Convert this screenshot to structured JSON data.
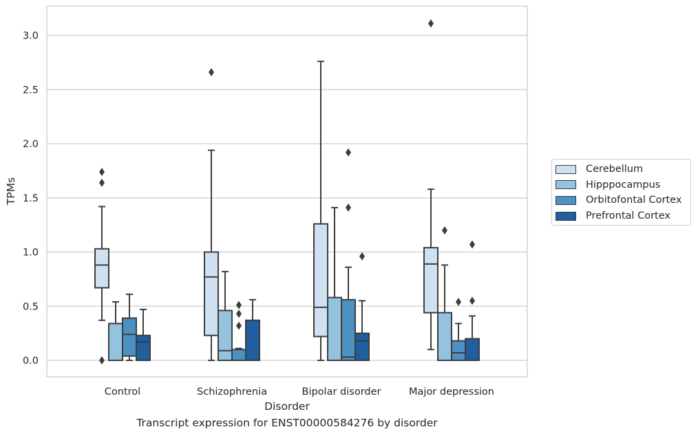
{
  "caption": "Transcript expression for ENST00000584276 by disorder",
  "chart_data": {
    "type": "box",
    "title": "",
    "xlabel": "Disorder",
    "ylabel": "TPMs",
    "ylim": [
      -0.15,
      3.27
    ],
    "yticks": [
      "0.0",
      "0.5",
      "1.0",
      "1.5",
      "2.0",
      "2.5",
      "3.0"
    ],
    "grid": "horizontal",
    "legend_position": "right",
    "categories": [
      "Control",
      "Schizophrenia",
      "Bipolar disorder",
      "Major depression"
    ],
    "series": [
      {
        "name": "Cerebellum",
        "color": "#cfe0f1",
        "boxes": [
          {
            "whislo": 0.37,
            "q1": 0.67,
            "med": 0.88,
            "q3": 1.03,
            "whishi": 1.42,
            "fliers": [
              0.0,
              1.64,
              1.74
            ]
          },
          {
            "whislo": 0.0,
            "q1": 0.23,
            "med": 0.77,
            "q3": 1.0,
            "whishi": 1.94,
            "fliers": [
              2.66
            ]
          },
          {
            "whislo": 0.0,
            "q1": 0.22,
            "med": 0.49,
            "q3": 1.26,
            "whishi": 2.76,
            "fliers": []
          },
          {
            "whislo": 0.1,
            "q1": 0.44,
            "med": 0.89,
            "q3": 1.04,
            "whishi": 1.58,
            "fliers": [
              3.11
            ]
          }
        ]
      },
      {
        "name": "Hipppocampus",
        "color": "#93c3df",
        "boxes": [
          {
            "whislo": 0.0,
            "q1": 0.0,
            "med": 0.0,
            "q3": 0.34,
            "whishi": 0.54,
            "fliers": []
          },
          {
            "whislo": 0.0,
            "q1": 0.0,
            "med": 0.09,
            "q3": 0.46,
            "whishi": 0.82,
            "fliers": []
          },
          {
            "whislo": 0.0,
            "q1": 0.0,
            "med": 0.0,
            "q3": 0.58,
            "whishi": 1.41,
            "fliers": []
          },
          {
            "whislo": 0.0,
            "q1": 0.0,
            "med": 0.0,
            "q3": 0.44,
            "whishi": 0.88,
            "fliers": [
              1.2
            ]
          }
        ]
      },
      {
        "name": "Orbitofontal Cortex",
        "color": "#4d90c2",
        "boxes": [
          {
            "whislo": 0.0,
            "q1": 0.04,
            "med": 0.24,
            "q3": 0.39,
            "whishi": 0.61,
            "fliers": []
          },
          {
            "whislo": 0.0,
            "q1": 0.0,
            "med": 0.0,
            "q3": 0.1,
            "whishi": 0.11,
            "fliers": [
              0.32,
              0.43,
              0.51
            ]
          },
          {
            "whislo": 0.0,
            "q1": 0.0,
            "med": 0.03,
            "q3": 0.56,
            "whishi": 0.86,
            "fliers": [
              1.41,
              1.92
            ]
          },
          {
            "whislo": 0.0,
            "q1": 0.0,
            "med": 0.07,
            "q3": 0.18,
            "whishi": 0.34,
            "fliers": [
              0.54
            ]
          }
        ]
      },
      {
        "name": "Prefrontal Cortex",
        "color": "#1f5e9f",
        "boxes": [
          {
            "whislo": 0.0,
            "q1": 0.0,
            "med": 0.17,
            "q3": 0.23,
            "whishi": 0.47,
            "fliers": []
          },
          {
            "whislo": 0.0,
            "q1": 0.0,
            "med": 0.0,
            "q3": 0.37,
            "whishi": 0.56,
            "fliers": []
          },
          {
            "whislo": 0.0,
            "q1": 0.0,
            "med": 0.18,
            "q3": 0.25,
            "whishi": 0.55,
            "fliers": [
              0.96
            ]
          },
          {
            "whislo": 0.0,
            "q1": 0.0,
            "med": 0.0,
            "q3": 0.2,
            "whishi": 0.41,
            "fliers": [
              0.55,
              1.07
            ]
          }
        ]
      }
    ]
  }
}
